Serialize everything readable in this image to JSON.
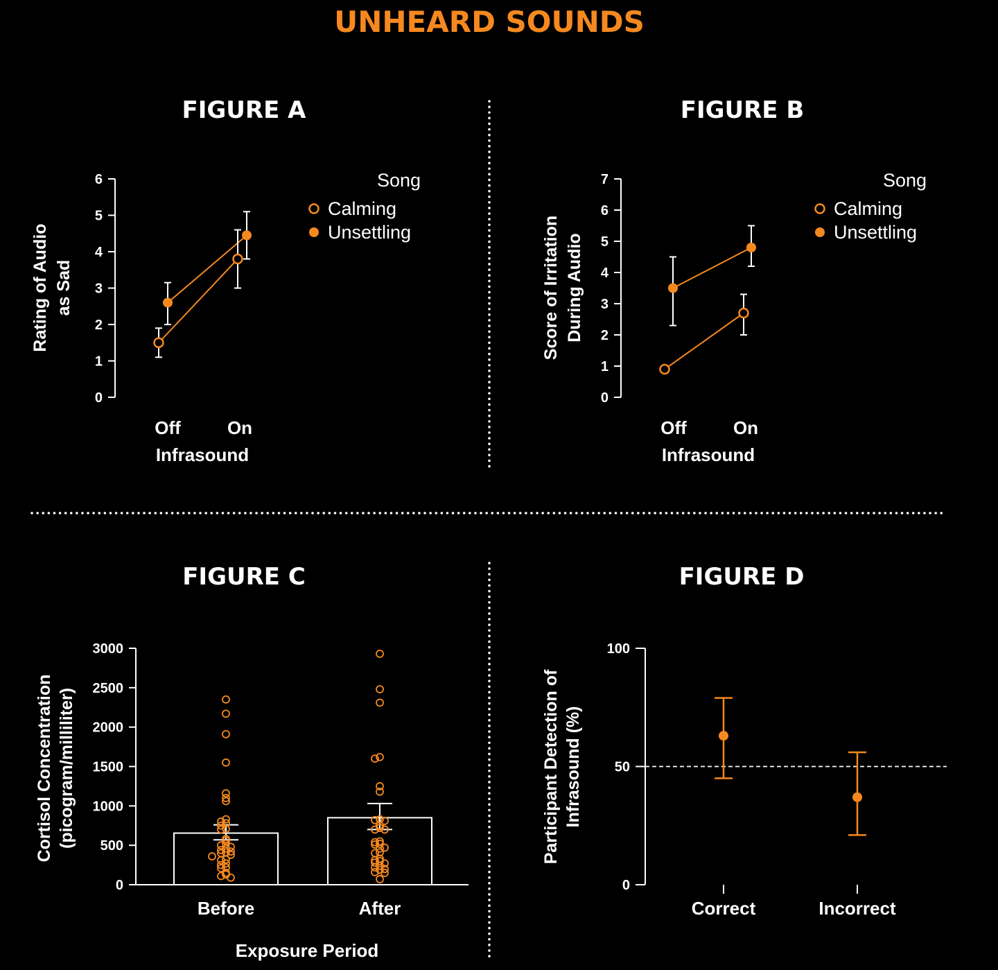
{
  "title": "UNHEARD SOUNDS",
  "colors": {
    "accent": "#f5891f",
    "background": "#000000",
    "foreground": "#ffffff"
  },
  "chart_data": [
    {
      "id": "A",
      "type": "line",
      "title": "FIGURE A",
      "xlabel": "Infrasound",
      "ylabel": [
        "Rating of Audio",
        "as Sad"
      ],
      "categories": [
        "Off",
        "On"
      ],
      "ylim": [
        0,
        6
      ],
      "yticks": [
        0,
        1,
        2,
        3,
        4,
        5,
        6
      ],
      "legend": {
        "title": "Song",
        "position": "top-right"
      },
      "series": [
        {
          "name": "Calming",
          "marker": "open",
          "values": [
            1.5,
            3.8
          ],
          "err_low": [
            1.1,
            3.0
          ],
          "err_high": [
            1.9,
            4.6
          ]
        },
        {
          "name": "Unsettling",
          "marker": "filled",
          "values": [
            2.6,
            4.45
          ],
          "err_low": [
            2.0,
            3.8
          ],
          "err_high": [
            3.15,
            5.1
          ]
        }
      ]
    },
    {
      "id": "B",
      "type": "line",
      "title": "FIGURE B",
      "xlabel": "Infrasound",
      "ylabel": [
        "Score of Irritation",
        "During Audio"
      ],
      "categories": [
        "Off",
        "On"
      ],
      "ylim": [
        0,
        7
      ],
      "yticks": [
        0,
        1,
        2,
        3,
        4,
        5,
        6,
        7
      ],
      "legend": {
        "title": "Song",
        "position": "top-right"
      },
      "series": [
        {
          "name": "Calming",
          "marker": "open",
          "values": [
            0.9,
            2.7
          ],
          "err_low": [
            0.9,
            2.0
          ],
          "err_high": [
            0.9,
            3.3
          ]
        },
        {
          "name": "Unsettling",
          "marker": "filled",
          "values": [
            3.5,
            4.8
          ],
          "err_low": [
            2.3,
            4.2
          ],
          "err_high": [
            4.5,
            5.5
          ]
        }
      ]
    },
    {
      "id": "C",
      "type": "bar",
      "title": "FIGURE C",
      "xlabel": "Exposure Period",
      "ylabel": [
        "Cortisol Concentration",
        "(picogram/milliliter)"
      ],
      "categories": [
        "Before",
        "After"
      ],
      "ylim": [
        0,
        3000
      ],
      "yticks": [
        0,
        500,
        1000,
        1500,
        2000,
        2500,
        3000
      ],
      "values": [
        655,
        850
      ],
      "err_low": [
        570,
        700
      ],
      "err_high": [
        760,
        1030
      ],
      "points": [
        [
          2350,
          2170,
          1910,
          1550,
          1160,
          1100,
          1060,
          830,
          800,
          780,
          750,
          710,
          700,
          580,
          560,
          520,
          500,
          480,
          460,
          440,
          420,
          410,
          400,
          380,
          360,
          320,
          310,
          270,
          250,
          220,
          210,
          150,
          130,
          110,
          90
        ],
        [
          2930,
          2480,
          2310,
          1620,
          1600,
          1250,
          1180,
          830,
          820,
          810,
          750,
          720,
          700,
          700,
          550,
          540,
          520,
          510,
          470,
          460,
          410,
          400,
          330,
          310,
          300,
          280,
          270,
          240,
          220,
          200,
          190,
          160,
          150,
          70
        ]
      ]
    },
    {
      "id": "D",
      "type": "scatter",
      "title": "FIGURE D",
      "ylabel": [
        "Participant Detection of",
        "Infrasound (%)"
      ],
      "categories": [
        "Correct",
        "Incorrect"
      ],
      "ylim": [
        0,
        100
      ],
      "yticks": [
        0,
        50,
        100
      ],
      "reference_line": 50,
      "values": [
        63,
        37
      ],
      "err_low": [
        45,
        21
      ],
      "err_high": [
        79,
        56
      ]
    }
  ]
}
